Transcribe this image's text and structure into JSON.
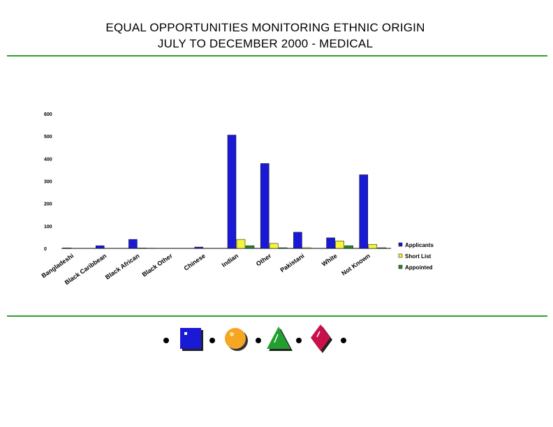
{
  "page": {
    "title_line1": "EQUAL OPPORTUNITIES MONITORING ETHNIC ORIGIN",
    "title_line2": "JULY TO DECEMBER 2000 - MEDICAL",
    "accent_color": "#2e9e2e"
  },
  "chart_data": {
    "type": "bar",
    "title": "",
    "xlabel": "",
    "ylabel": "",
    "ylim": [
      0,
      600
    ],
    "yticks": [
      0,
      100,
      200,
      300,
      400,
      500,
      600
    ],
    "grid": false,
    "legend_position": "right",
    "categories": [
      "Bangladeshi",
      "Black Caribbean",
      "Black African",
      "Black Other",
      "Chinese",
      "Indian",
      "Other",
      "Pakistani",
      "White",
      "Not Known"
    ],
    "series": [
      {
        "name": "Applicants",
        "color": "#1a1ad6",
        "values": [
          2,
          12,
          40,
          0,
          6,
          505,
          378,
          72,
          47,
          328
        ]
      },
      {
        "name": "Short List",
        "color": "#f5f53c",
        "values": [
          0,
          0,
          2,
          0,
          0,
          40,
          22,
          3,
          33,
          18
        ]
      },
      {
        "name": "Appointed",
        "color": "#2a8a2a",
        "values": [
          0,
          0,
          1,
          0,
          0,
          12,
          3,
          0,
          12,
          3
        ]
      }
    ]
  },
  "footer": {
    "icons": [
      "bullet-dot",
      "blue-square-icon",
      "bullet-dot",
      "orange-circle-icon",
      "bullet-dot",
      "green-triangle-icon",
      "bullet-dot",
      "red-diamond-icon",
      "bullet-dot"
    ]
  }
}
